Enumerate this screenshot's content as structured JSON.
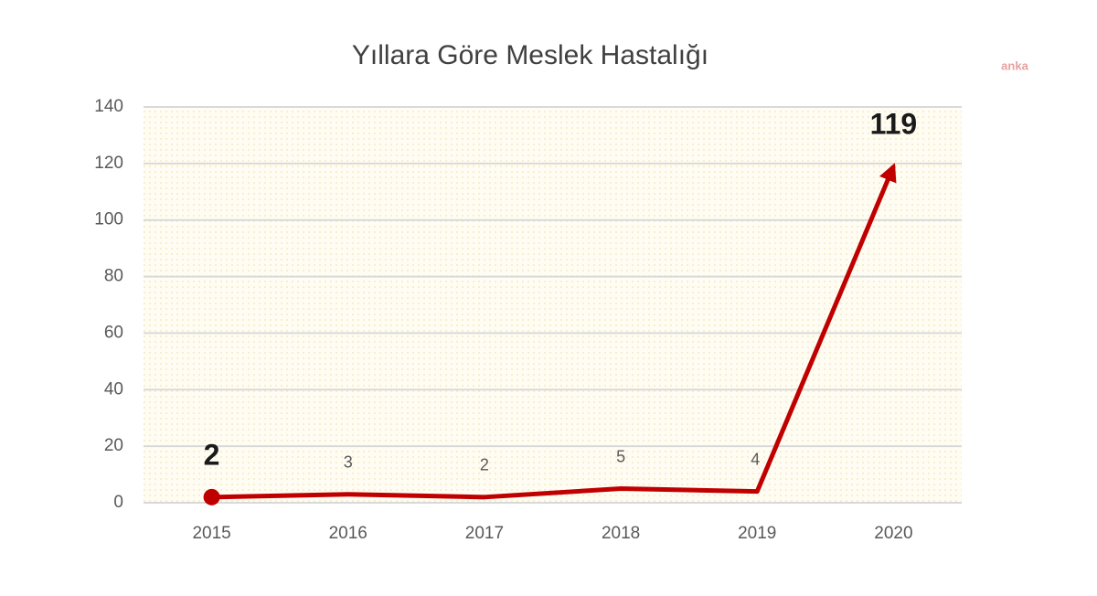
{
  "chart_data": {
    "type": "line",
    "title": "Yıllara Göre Meslek Hastalığı",
    "watermark": "anka",
    "categories": [
      "2015",
      "2016",
      "2017",
      "2018",
      "2019",
      "2020"
    ],
    "values": [
      2,
      3,
      2,
      5,
      4,
      119
    ],
    "color": "#c00000",
    "ylim": [
      0,
      140
    ],
    "yticks": [
      0,
      20,
      40,
      60,
      80,
      100,
      120,
      140
    ],
    "grid": true
  }
}
